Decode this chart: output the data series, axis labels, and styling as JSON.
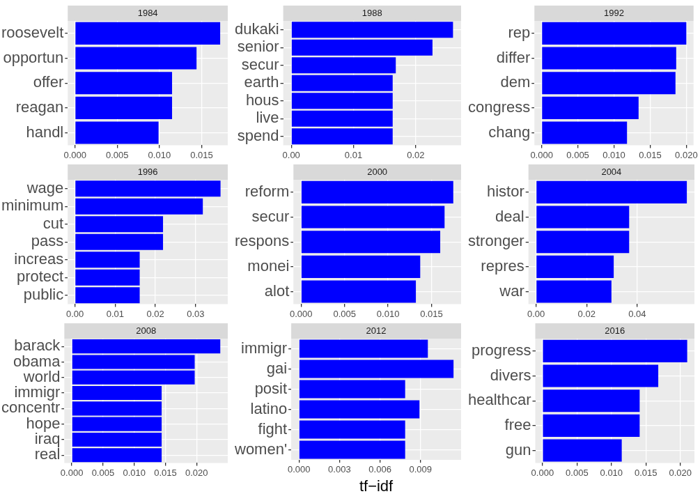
{
  "chart_data": [
    {
      "type": "bar",
      "orientation": "horizontal",
      "title": "1984",
      "categories": [
        "roosevelt",
        "opportun",
        "offer",
        "reagan",
        "handl"
      ],
      "values": [
        0.0172,
        0.0144,
        0.0115,
        0.0115,
        0.0099
      ],
      "color": "#0000ff",
      "xlim": [
        -0.00086,
        0.0181
      ],
      "xticks": [
        {
          "value": 0,
          "label": "0.000"
        },
        {
          "value": 0.005,
          "label": "0.005"
        },
        {
          "value": 0.01,
          "label": "0.010"
        },
        {
          "value": 0.015,
          "label": "0.015"
        }
      ],
      "grid": true,
      "legend": false
    },
    {
      "type": "bar",
      "orientation": "horizontal",
      "title": "1988",
      "categories": [
        "dukaki",
        "senior",
        "secur",
        "earth",
        "hous",
        "live",
        "spend"
      ],
      "values": [
        0.026,
        0.0227,
        0.0168,
        0.0163,
        0.0163,
        0.0163,
        0.0163
      ],
      "color": "#0000ff",
      "xlim": [
        -0.0013,
        0.0273
      ],
      "xticks": [
        {
          "value": 0,
          "label": "0.00"
        },
        {
          "value": 0.01,
          "label": "0.01"
        },
        {
          "value": 0.02,
          "label": "0.02"
        }
      ],
      "grid": true,
      "legend": false
    },
    {
      "type": "bar",
      "orientation": "horizontal",
      "title": "1992",
      "categories": [
        "rep",
        "differ",
        "dem",
        "congress",
        "chang"
      ],
      "values": [
        0.02,
        0.0186,
        0.0185,
        0.0134,
        0.0118
      ],
      "color": "#0000ff",
      "xlim": [
        -0.001,
        0.021
      ],
      "xticks": [
        {
          "value": 0,
          "label": "0.000"
        },
        {
          "value": 0.005,
          "label": "0.005"
        },
        {
          "value": 0.01,
          "label": "0.010"
        },
        {
          "value": 0.015,
          "label": "0.015"
        },
        {
          "value": 0.02,
          "label": "0.020"
        }
      ],
      "grid": true,
      "legend": false
    },
    {
      "type": "bar",
      "orientation": "horizontal",
      "title": "1996",
      "categories": [
        "wage",
        "minimum",
        "cut",
        "pass",
        "increas",
        "protect",
        "public"
      ],
      "values": [
        0.0362,
        0.0318,
        0.0219,
        0.0219,
        0.0161,
        0.0161,
        0.0161
      ],
      "color": "#0000ff",
      "xlim": [
        -0.0018,
        0.038
      ],
      "xticks": [
        {
          "value": 0,
          "label": "0.00"
        },
        {
          "value": 0.01,
          "label": "0.01"
        },
        {
          "value": 0.02,
          "label": "0.02"
        },
        {
          "value": 0.03,
          "label": "0.03"
        }
      ],
      "grid": true,
      "legend": false
    },
    {
      "type": "bar",
      "orientation": "horizontal",
      "title": "2000",
      "categories": [
        "reform",
        "secur",
        "respons",
        "monei",
        "alot"
      ],
      "values": [
        0.0175,
        0.0165,
        0.016,
        0.0137,
        0.0132
      ],
      "color": "#0000ff",
      "xlim": [
        -0.00088,
        0.0184
      ],
      "xticks": [
        {
          "value": 0,
          "label": "0.000"
        },
        {
          "value": 0.005,
          "label": "0.005"
        },
        {
          "value": 0.01,
          "label": "0.010"
        },
        {
          "value": 0.015,
          "label": "0.015"
        }
      ],
      "grid": true,
      "legend": false
    },
    {
      "type": "bar",
      "orientation": "horizontal",
      "title": "2004",
      "categories": [
        "histor",
        "deal",
        "stronger",
        "repres",
        "war"
      ],
      "values": [
        0.0596,
        0.0368,
        0.0368,
        0.0307,
        0.0298
      ],
      "color": "#0000ff",
      "xlim": [
        -0.003,
        0.0626
      ],
      "xticks": [
        {
          "value": 0,
          "label": "0.00"
        },
        {
          "value": 0.02,
          "label": "0.02"
        },
        {
          "value": 0.04,
          "label": "0.04"
        }
      ],
      "grid": true,
      "legend": false
    },
    {
      "type": "bar",
      "orientation": "horizontal",
      "title": "2008",
      "categories": [
        "barack",
        "obama",
        "world",
        "immigr",
        "concentr",
        "hope",
        "iraq",
        "real"
      ],
      "values": [
        0.0238,
        0.0197,
        0.0197,
        0.0144,
        0.0144,
        0.0144,
        0.0144,
        0.0144
      ],
      "color": "#0000ff",
      "xlim": [
        -0.0012,
        0.025
      ],
      "xticks": [
        {
          "value": 0,
          "label": "0.000"
        },
        {
          "value": 0.005,
          "label": "0.005"
        },
        {
          "value": 0.01,
          "label": "0.010"
        },
        {
          "value": 0.015,
          "label": "0.015"
        },
        {
          "value": 0.02,
          "label": "0.020"
        }
      ],
      "grid": true,
      "legend": false
    },
    {
      "type": "bar",
      "orientation": "horizontal",
      "title": "2012",
      "xlabel": "tf−idf",
      "categories": [
        "immigr",
        "gai",
        "posit",
        "latino",
        "fight",
        "women'"
      ],
      "values": [
        0.00954,
        0.01144,
        0.00786,
        0.00892,
        0.00786,
        0.00786
      ],
      "color": "#0000ff",
      "xlim": [
        -0.00057,
        0.012
      ],
      "xticks": [
        {
          "value": 0,
          "label": "0.000"
        },
        {
          "value": 0.003,
          "label": "0.003"
        },
        {
          "value": 0.006,
          "label": "0.006"
        },
        {
          "value": 0.009,
          "label": "0.009"
        }
      ],
      "grid": true,
      "legend": false
    },
    {
      "type": "bar",
      "orientation": "horizontal",
      "title": "2016",
      "categories": [
        "progress",
        "divers",
        "healthcar",
        "free",
        "gun"
      ],
      "values": [
        0.021,
        0.0168,
        0.0141,
        0.0141,
        0.0115
      ],
      "color": "#0000ff",
      "xlim": [
        -0.00105,
        0.02205
      ],
      "xticks": [
        {
          "value": 0,
          "label": "0.000"
        },
        {
          "value": 0.005,
          "label": "0.005"
        },
        {
          "value": 0.01,
          "label": "0.010"
        },
        {
          "value": 0.015,
          "label": "0.015"
        },
        {
          "value": 0.02,
          "label": "0.020"
        }
      ],
      "grid": true,
      "legend": false
    }
  ]
}
